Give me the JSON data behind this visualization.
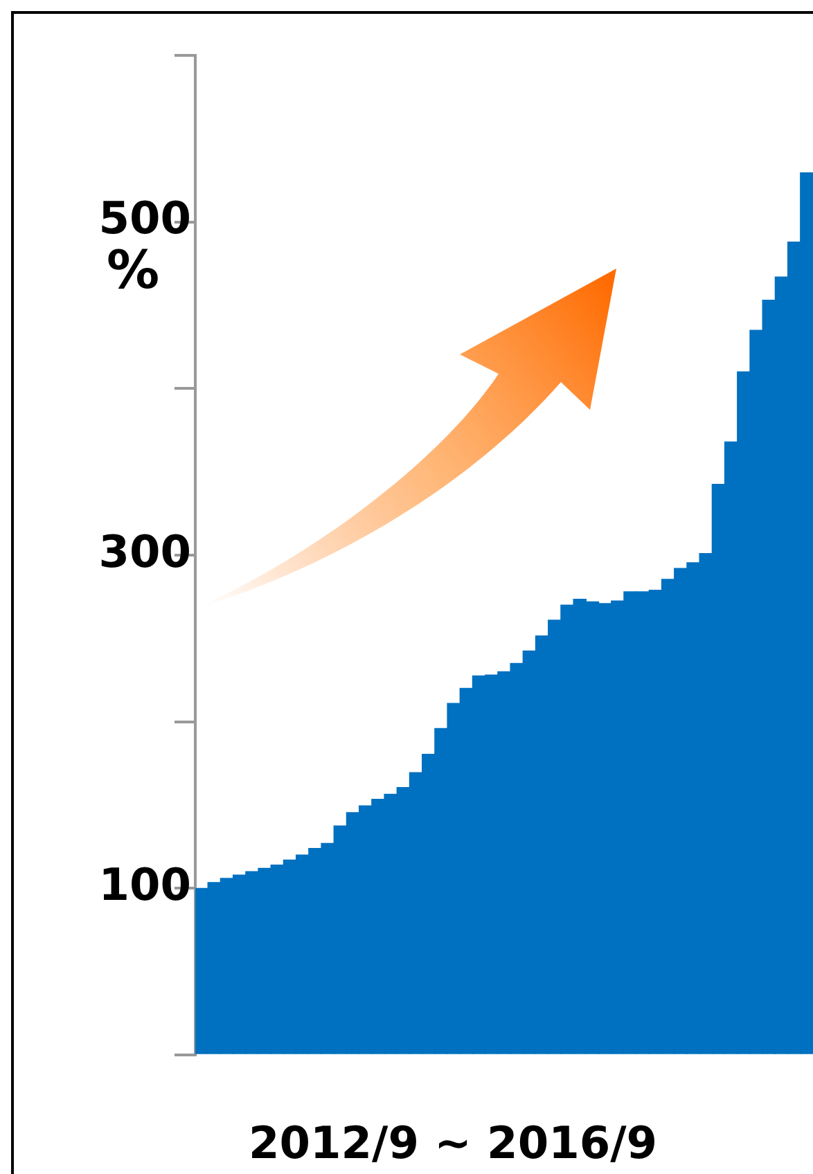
{
  "chart_data": {
    "type": "bar",
    "xlabel": "2012/9 ~ 2016/9",
    "ylabel": "%",
    "categories": [
      null,
      null,
      null,
      null,
      null,
      null,
      null,
      null,
      null,
      null,
      null,
      null,
      null,
      null,
      null,
      null,
      null,
      null,
      null,
      null,
      null,
      null,
      null,
      null,
      null,
      null,
      null,
      null,
      null,
      null,
      null,
      null,
      null,
      null,
      null,
      null,
      null,
      null,
      null,
      null,
      null,
      null,
      null,
      null,
      null,
      null,
      null,
      null,
      null
    ],
    "values": [
      100,
      103.5,
      106,
      108,
      110,
      112,
      114,
      117,
      120,
      124,
      127,
      137.5,
      145.5,
      149.5,
      153.5,
      156.5,
      160.5,
      169.5,
      180.5,
      196,
      211,
      220,
      227.5,
      228,
      230,
      235,
      242.5,
      251.5,
      261,
      270,
      273.5,
      272,
      271,
      272.5,
      278,
      278,
      279,
      285.5,
      292,
      295.5,
      301,
      342.5,
      368,
      410,
      435,
      453,
      467,
      488,
      529.5
    ],
    "color": "#0070c0",
    "ylim": [
      0,
      600
    ],
    "yticks": [
      {
        "value": 0,
        "label": null
      },
      100,
      {
        "value": 200,
        "label": null
      },
      300,
      {
        "value": 400,
        "label": null
      },
      500,
      {
        "value": 600,
        "label": null
      }
    ],
    "grid": false,
    "legend": false
  }
}
